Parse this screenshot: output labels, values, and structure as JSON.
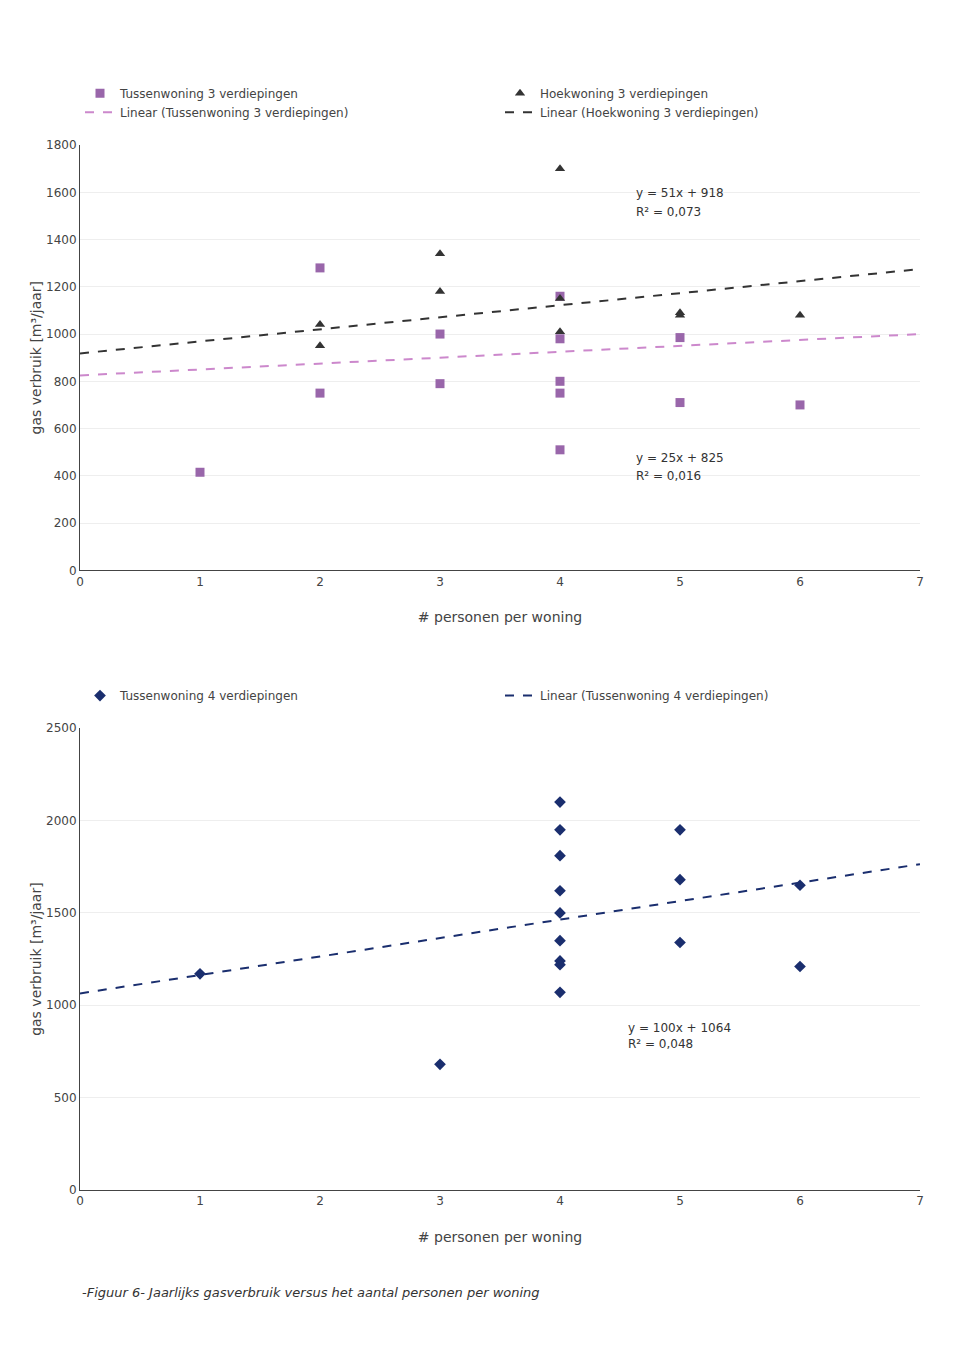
{
  "chart_data": [
    {
      "type": "scatter",
      "xlabel": "# personen per woning",
      "ylabel": "gas verbruik [m³/jaar]",
      "xlim": [
        0,
        7
      ],
      "xticks": [
        0,
        1,
        2,
        3,
        4,
        5,
        6,
        7
      ],
      "ylim": [
        0,
        1800
      ],
      "yticks": [
        0,
        200,
        400,
        600,
        800,
        1000,
        1200,
        1400,
        1600,
        1800
      ],
      "grid": "y",
      "legend": "upper left",
      "series": [
        {
          "name": "Tussenwoning 3 verdiepingen",
          "type": "scatter",
          "marker": "square",
          "color": "#9966aa",
          "x": [
            1,
            2,
            2,
            3,
            3,
            4,
            4,
            4,
            4,
            4,
            5,
            5,
            6
          ],
          "values": [
            415,
            1280,
            750,
            1000,
            790,
            980,
            1160,
            750,
            510,
            800,
            985,
            710,
            700
          ]
        },
        {
          "name": "Hoekwoning 3 verdiepingen",
          "type": "scatter",
          "marker": "triangle-up",
          "color": "#333333",
          "x": [
            2,
            2,
            3,
            3,
            4,
            4,
            4,
            5,
            5,
            6
          ],
          "values": [
            1040,
            950,
            1340,
            1180,
            1700,
            1150,
            1010,
            1080,
            1090,
            1080
          ]
        },
        {
          "name": "Linear (Tussenwoning 3 verdiepingen)",
          "type": "line",
          "line_style": "dashed",
          "color": "#cc88cc",
          "x": [
            0,
            7
          ],
          "values": [
            825,
            1000
          ]
        },
        {
          "name": "Linear (Hoekwoning 3 verdiepingen)",
          "type": "line",
          "line_style": "dashed",
          "color": "#333333",
          "x": [
            0,
            7
          ],
          "values": [
            918,
            1275
          ]
        }
      ],
      "annotations": [
        "y = 51x + 918",
        "R² = 0,073",
        "y = 25x + 825",
        "R² = 0,016"
      ]
    },
    {
      "type": "scatter",
      "title": "-Figuur 6- Jaarlijks gasverbruik versus het aantal personen per woning",
      "xlabel": "# personen per woning",
      "ylabel": "gas verbruik [m³/jaar]",
      "xlim": [
        0,
        7
      ],
      "xticks": [
        0,
        1,
        2,
        3,
        4,
        5,
        6,
        7
      ],
      "ylim": [
        0,
        2500
      ],
      "yticks": [
        0,
        500,
        1000,
        1500,
        2000,
        2500
      ],
      "grid": "y",
      "legend": "upper left",
      "series": [
        {
          "name": "Tussenwoning 4 verdiepingen",
          "type": "scatter",
          "marker": "diamond",
          "color": "#1a2e6e",
          "x": [
            1,
            3,
            4,
            4,
            4,
            4,
            4,
            4,
            4,
            4,
            4,
            5,
            5,
            5,
            6,
            6
          ],
          "values": [
            1170,
            680,
            2100,
            1950,
            1810,
            1620,
            1500,
            1350,
            1240,
            1220,
            1070,
            1950,
            1680,
            1340,
            1650,
            1210
          ]
        },
        {
          "name": "Linear (Tussenwoning 4 verdiepingen)",
          "type": "line",
          "line_style": "dashed",
          "color": "#1a2e6e",
          "x": [
            0,
            7
          ],
          "values": [
            1064,
            1764
          ]
        }
      ],
      "annotations": [
        "y = 100x + 1064",
        "R² = 0,048"
      ]
    }
  ]
}
